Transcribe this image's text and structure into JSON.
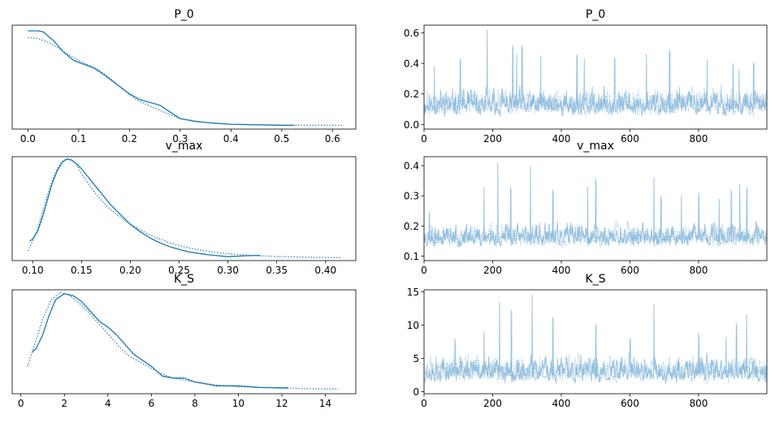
{
  "chart_data": [
    {
      "type": "line",
      "title": "P_0",
      "xlim": [
        -0.031,
        0.646
      ],
      "ylim": [
        -0.3,
        10.6
      ],
      "xticks": [
        0.0,
        0.1,
        0.2,
        0.3,
        0.4,
        0.5,
        0.6
      ],
      "xtick_labels": [
        "0.0",
        "0.1",
        "0.2",
        "0.3",
        "0.4",
        "0.5",
        "0.6"
      ],
      "yaxis_hidden": true,
      "series": [
        {
          "style": "solid",
          "x": [
            0.0,
            0.01,
            0.02,
            0.03,
            0.05,
            0.07,
            0.09,
            0.11,
            0.13,
            0.15,
            0.18,
            0.2,
            0.22,
            0.24,
            0.26,
            0.28,
            0.3,
            0.33,
            0.36,
            0.4,
            0.45,
            0.5,
            0.525
          ],
          "y": [
            10.0,
            10.0,
            10.0,
            9.9,
            9.0,
            7.8,
            6.9,
            6.5,
            6.1,
            5.4,
            4.2,
            3.4,
            2.8,
            2.5,
            2.2,
            1.5,
            0.8,
            0.5,
            0.35,
            0.2,
            0.15,
            0.1,
            0.1
          ]
        },
        {
          "style": "dotted",
          "x": [
            0.0,
            0.02,
            0.04,
            0.06,
            0.08,
            0.1,
            0.12,
            0.14,
            0.16,
            0.18,
            0.2,
            0.22,
            0.25,
            0.28,
            0.3,
            0.35,
            0.4,
            0.45,
            0.5,
            0.55,
            0.6,
            0.62
          ],
          "y": [
            9.3,
            9.2,
            8.8,
            8.2,
            7.5,
            6.9,
            6.4,
            5.9,
            5.1,
            4.2,
            3.3,
            2.6,
            1.9,
            1.2,
            0.8,
            0.4,
            0.2,
            0.15,
            0.1,
            0.1,
            0.1,
            0.1
          ]
        }
      ]
    },
    {
      "type": "line",
      "title": "P_0",
      "xlim": [
        0,
        999
      ],
      "ylim": [
        -0.03,
        0.65
      ],
      "xticks": [
        0,
        200,
        400,
        600,
        800
      ],
      "xtick_labels": [
        "0",
        "200",
        "400",
        "600",
        "800"
      ],
      "yticks": [
        0.0,
        0.2,
        0.4,
        0.6
      ],
      "ytick_labels": [
        "0.0",
        "0.2",
        "0.4",
        "0.6"
      ],
      "trace": {
        "n": 1000,
        "base": 0.11,
        "spread": 0.08,
        "floor": 0.0,
        "seed": 11,
        "spikes": [
          [
            184,
            0.62
          ],
          [
            258,
            0.52
          ],
          [
            270,
            0.46
          ],
          [
            285,
            0.52
          ],
          [
            340,
            0.45
          ],
          [
            445,
            0.46
          ],
          [
            467,
            0.43
          ],
          [
            555,
            0.44
          ],
          [
            648,
            0.46
          ],
          [
            715,
            0.49
          ],
          [
            825,
            0.42
          ],
          [
            900,
            0.4
          ],
          [
            918,
            0.36
          ],
          [
            960,
            0.41
          ],
          [
            30,
            0.38
          ],
          [
            105,
            0.43
          ]
        ]
      }
    },
    {
      "type": "line",
      "title": "v_max",
      "xlim": [
        0.079,
        0.431
      ],
      "ylim": [
        -0.5,
        21.0
      ],
      "xticks": [
        0.1,
        0.15,
        0.2,
        0.25,
        0.3,
        0.35,
        0.4
      ],
      "xtick_labels": [
        "0.10",
        "0.15",
        "0.20",
        "0.25",
        "0.30",
        "0.35",
        "0.40"
      ],
      "yaxis_hidden": true,
      "series": [
        {
          "style": "solid",
          "x": [
            0.097,
            0.1,
            0.105,
            0.11,
            0.115,
            0.12,
            0.125,
            0.13,
            0.135,
            0.14,
            0.145,
            0.15,
            0.16,
            0.17,
            0.18,
            0.19,
            0.2,
            0.21,
            0.22,
            0.23,
            0.24,
            0.25,
            0.26,
            0.28,
            0.3,
            0.32,
            0.333
          ],
          "y": [
            3.5,
            4.0,
            5.5,
            8.5,
            12.0,
            15.5,
            18.0,
            19.8,
            20.5,
            20.3,
            19.5,
            18.5,
            16.0,
            13.5,
            11.0,
            9.0,
            7.0,
            5.5,
            4.2,
            3.2,
            2.4,
            1.8,
            1.3,
            0.7,
            0.3,
            0.5,
            0.6
          ]
        },
        {
          "style": "dotted",
          "x": [
            0.095,
            0.1,
            0.105,
            0.11,
            0.115,
            0.12,
            0.125,
            0.13,
            0.135,
            0.14,
            0.145,
            0.15,
            0.16,
            0.17,
            0.18,
            0.19,
            0.2,
            0.22,
            0.24,
            0.26,
            0.28,
            0.3,
            0.33,
            0.36,
            0.39,
            0.415
          ],
          "y": [
            1.5,
            3.5,
            6.0,
            9.5,
            13.0,
            16.0,
            18.5,
            20.0,
            20.6,
            20.4,
            19.3,
            17.5,
            14.5,
            12.0,
            10.0,
            8.5,
            7.0,
            4.8,
            3.2,
            2.1,
            1.4,
            0.9,
            0.5,
            0.3,
            0.15,
            0.1
          ]
        }
      ]
    },
    {
      "type": "line",
      "title": "v_max",
      "xlim": [
        0,
        999
      ],
      "ylim": [
        0.085,
        0.43
      ],
      "xticks": [
        0,
        200,
        400,
        600,
        800
      ],
      "xtick_labels": [
        "0",
        "200",
        "400",
        "600",
        "800"
      ],
      "yticks": [
        0.1,
        0.2,
        0.3,
        0.4
      ],
      "ytick_labels": [
        "0.1",
        "0.2",
        "0.3",
        "0.4"
      ],
      "trace": {
        "n": 1000,
        "base": 0.155,
        "spread": 0.035,
        "floor": 0.1,
        "seed": 23,
        "spikes": [
          [
            215,
            0.41
          ],
          [
            252,
            0.33
          ],
          [
            310,
            0.4
          ],
          [
            375,
            0.32
          ],
          [
            477,
            0.33
          ],
          [
            500,
            0.36
          ],
          [
            670,
            0.36
          ],
          [
            690,
            0.3
          ],
          [
            750,
            0.3
          ],
          [
            800,
            0.31
          ],
          [
            860,
            0.29
          ],
          [
            895,
            0.32
          ],
          [
            920,
            0.34
          ],
          [
            940,
            0.33
          ],
          [
            175,
            0.33
          ],
          [
            15,
            0.25
          ]
        ]
      }
    },
    {
      "type": "line",
      "title": "K_S",
      "xlim": [
        -0.4,
        15.4
      ],
      "ylim": [
        -0.01,
        0.255
      ],
      "xticks": [
        0,
        2,
        4,
        6,
        8,
        10,
        12,
        14
      ],
      "xtick_labels": [
        "0",
        "2",
        "4",
        "6",
        "8",
        "10",
        "12",
        "14"
      ],
      "yaxis_hidden": true,
      "series": [
        {
          "style": "solid",
          "x": [
            0.5,
            0.7,
            1.0,
            1.3,
            1.6,
            2.0,
            2.4,
            2.8,
            3.2,
            3.6,
            4.0,
            4.4,
            4.8,
            5.2,
            5.6,
            6.0,
            6.5,
            7.0,
            7.5,
            8.0,
            9.0,
            10.0,
            11.0,
            12.3
          ],
          "y": [
            0.095,
            0.105,
            0.14,
            0.19,
            0.23,
            0.245,
            0.24,
            0.225,
            0.2,
            0.175,
            0.16,
            0.14,
            0.115,
            0.09,
            0.075,
            0.06,
            0.035,
            0.03,
            0.03,
            0.02,
            0.01,
            0.01,
            0.006,
            0.005
          ]
        },
        {
          "style": "dotted",
          "x": [
            0.3,
            0.6,
            1.0,
            1.4,
            1.8,
            2.2,
            2.6,
            3.0,
            3.4,
            3.8,
            4.2,
            4.6,
            5.0,
            5.5,
            6.0,
            6.5,
            7.0,
            7.5,
            8.0,
            9.0,
            10.0,
            11.0,
            12.0,
            13.0,
            14.0,
            14.6
          ],
          "y": [
            0.06,
            0.11,
            0.18,
            0.23,
            0.248,
            0.242,
            0.225,
            0.205,
            0.18,
            0.155,
            0.13,
            0.105,
            0.085,
            0.07,
            0.055,
            0.04,
            0.03,
            0.025,
            0.02,
            0.012,
            0.008,
            0.006,
            0.004,
            0.003,
            0.002,
            0.002
          ]
        }
      ]
    },
    {
      "type": "line",
      "title": "K_S",
      "xlim": [
        0,
        999
      ],
      "ylim": [
        -0.3,
        15.3
      ],
      "xticks": [
        0,
        200,
        400,
        600,
        800
      ],
      "xtick_labels": [
        "0",
        "200",
        "400",
        "600",
        "800"
      ],
      "yticks": [
        0,
        5,
        10,
        15
      ],
      "ytick_labels": [
        "0",
        "5",
        "10",
        "15"
      ],
      "trace": {
        "n": 1000,
        "base": 2.6,
        "spread": 1.8,
        "floor": 0.4,
        "seed": 37,
        "spikes": [
          [
            220,
            13.5
          ],
          [
            254,
            12.3
          ],
          [
            315,
            14.6
          ],
          [
            375,
            11.2
          ],
          [
            500,
            11.0
          ],
          [
            500,
            10.2
          ],
          [
            670,
            13.2
          ],
          [
            800,
            8.8
          ],
          [
            880,
            8.2
          ],
          [
            910,
            10.3
          ],
          [
            940,
            11.6
          ],
          [
            90,
            8.0
          ],
          [
            175,
            9.0
          ],
          [
            600,
            8.0
          ]
        ]
      }
    }
  ]
}
